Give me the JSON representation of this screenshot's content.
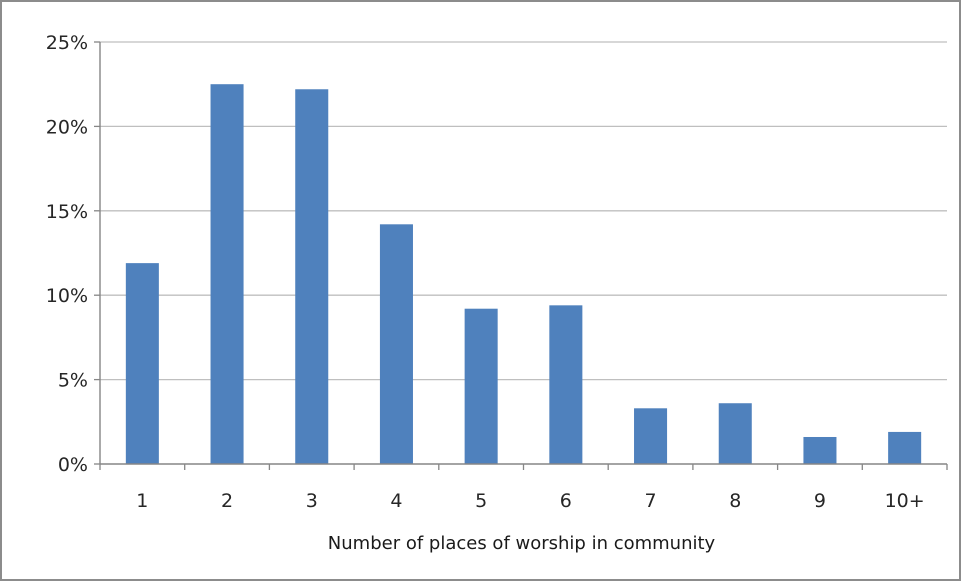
{
  "chart_data": {
    "type": "bar",
    "title": "",
    "xlabel": "Number of places of worship in community",
    "ylabel": "",
    "categories": [
      "1",
      "2",
      "3",
      "4",
      "5",
      "6",
      "7",
      "8",
      "9",
      "10+"
    ],
    "values": [
      11.9,
      22.5,
      22.2,
      14.2,
      9.2,
      9.4,
      3.3,
      3.6,
      1.6,
      1.9
    ],
    "ylim": [
      0,
      25
    ],
    "yticks": [
      0,
      5,
      10,
      15,
      20,
      25
    ],
    "ytick_labels": [
      "0%",
      "5%",
      "10%",
      "15%",
      "20%",
      "25%"
    ],
    "grid": true,
    "legend": "none",
    "bar_color": "#4f81bd",
    "grid_color": "#bfbfbf",
    "axis_color": "#868686",
    "frame_color": "#8c8c8c"
  }
}
